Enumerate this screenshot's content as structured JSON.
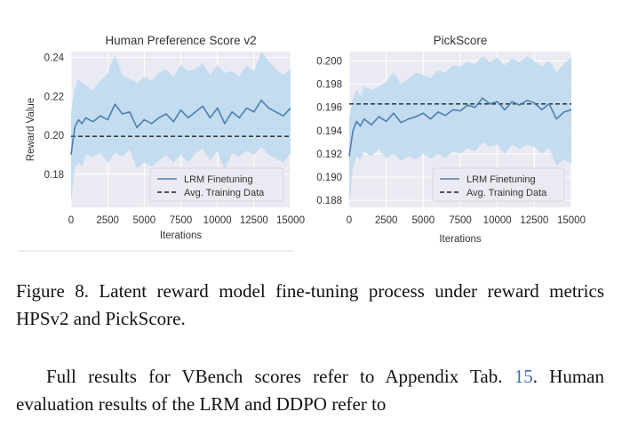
{
  "chart_data": [
    {
      "type": "line",
      "title": "Human Preference Score v2",
      "xlabel": "Iterations",
      "ylabel": "Reward Value",
      "xlim": [
        0,
        15000
      ],
      "ylim": [
        0.163,
        0.243
      ],
      "xticks": [
        0,
        2500,
        5000,
        7500,
        10000,
        12500,
        15000
      ],
      "yticks": [
        0.18,
        0.2,
        0.22,
        0.24
      ],
      "ytick_labels": [
        "0.18",
        "0.20",
        "0.22",
        "0.24"
      ],
      "grid": true,
      "legend_position": "bottom-right",
      "series": [
        {
          "name": "LRM Finetuning",
          "style": "solid",
          "color": "#4c7fb0",
          "x": [
            0,
            250,
            500,
            750,
            1000,
            1500,
            2000,
            2500,
            3000,
            3500,
            4000,
            4500,
            5000,
            5500,
            6000,
            6500,
            7000,
            7500,
            8000,
            8500,
            9000,
            9500,
            10000,
            10500,
            11000,
            11500,
            12000,
            12500,
            13000,
            13500,
            14000,
            14500,
            15000
          ],
          "y": [
            0.19,
            0.204,
            0.208,
            0.206,
            0.209,
            0.207,
            0.21,
            0.208,
            0.216,
            0.211,
            0.212,
            0.204,
            0.208,
            0.206,
            0.209,
            0.211,
            0.207,
            0.213,
            0.209,
            0.212,
            0.215,
            0.209,
            0.214,
            0.206,
            0.212,
            0.209,
            0.214,
            0.212,
            0.218,
            0.214,
            0.212,
            0.21,
            0.214
          ],
          "band_upper": [
            0.212,
            0.224,
            0.229,
            0.227,
            0.226,
            0.223,
            0.228,
            0.232,
            0.241,
            0.231,
            0.229,
            0.227,
            0.23,
            0.228,
            0.232,
            0.234,
            0.23,
            0.236,
            0.233,
            0.234,
            0.237,
            0.231,
            0.236,
            0.232,
            0.233,
            0.23,
            0.236,
            0.233,
            0.243,
            0.238,
            0.234,
            0.231,
            0.234
          ],
          "band_lower": [
            0.166,
            0.183,
            0.186,
            0.184,
            0.19,
            0.189,
            0.191,
            0.186,
            0.191,
            0.189,
            0.193,
            0.183,
            0.186,
            0.184,
            0.187,
            0.19,
            0.186,
            0.19,
            0.186,
            0.191,
            0.193,
            0.187,
            0.192,
            0.182,
            0.191,
            0.189,
            0.192,
            0.19,
            0.194,
            0.19,
            0.188,
            0.186,
            0.191
          ]
        },
        {
          "name": "Avg. Training Data",
          "style": "dashed",
          "color": "#222222",
          "x": [
            0,
            15000
          ],
          "y": [
            0.1995,
            0.1995
          ]
        }
      ]
    },
    {
      "type": "line",
      "title": "PickScore",
      "xlabel": "Iterations",
      "ylabel": "",
      "xlim": [
        0,
        15000
      ],
      "ylim": [
        0.1874,
        0.2008
      ],
      "xticks": [
        0,
        2500,
        5000,
        7500,
        10000,
        12500,
        15000
      ],
      "yticks": [
        0.188,
        0.19,
        0.192,
        0.194,
        0.196,
        0.198,
        0.2
      ],
      "ytick_labels": [
        "0.188",
        "0.190",
        "0.192",
        "0.194",
        "0.196",
        "0.198",
        "0.200"
      ],
      "grid": true,
      "legend_position": "bottom-right",
      "series": [
        {
          "name": "LRM Finetuning",
          "style": "solid",
          "color": "#4c7fb0",
          "x": [
            0,
            250,
            500,
            750,
            1000,
            1500,
            2000,
            2500,
            3000,
            3500,
            4000,
            4500,
            5000,
            5500,
            6000,
            6500,
            7000,
            7500,
            8000,
            8500,
            9000,
            9500,
            10000,
            10500,
            11000,
            11500,
            12000,
            12500,
            13000,
            13500,
            14000,
            14500,
            15000
          ],
          "y": [
            0.1918,
            0.194,
            0.1948,
            0.1944,
            0.195,
            0.1945,
            0.1952,
            0.1948,
            0.1955,
            0.1947,
            0.195,
            0.1952,
            0.1955,
            0.195,
            0.1956,
            0.1953,
            0.1958,
            0.1957,
            0.1962,
            0.196,
            0.1968,
            0.1963,
            0.1965,
            0.1958,
            0.1965,
            0.1962,
            0.1966,
            0.1964,
            0.1958,
            0.1963,
            0.195,
            0.1956,
            0.1958
          ],
          "band_upper": [
            0.195,
            0.1968,
            0.1975,
            0.197,
            0.1978,
            0.1975,
            0.1978,
            0.1982,
            0.199,
            0.198,
            0.1985,
            0.199,
            0.1988,
            0.1985,
            0.1992,
            0.199,
            0.1996,
            0.1995,
            0.1999,
            0.1997,
            0.2004,
            0.1999,
            0.2003,
            0.1996,
            0.2002,
            0.1999,
            0.2004,
            0.2,
            0.1995,
            0.2,
            0.199,
            0.1998,
            0.2003
          ],
          "band_lower": [
            0.1876,
            0.1908,
            0.1918,
            0.1915,
            0.1922,
            0.1918,
            0.1924,
            0.1916,
            0.192,
            0.1914,
            0.1918,
            0.1915,
            0.192,
            0.1916,
            0.192,
            0.1916,
            0.1922,
            0.192,
            0.1925,
            0.1922,
            0.193,
            0.1926,
            0.1928,
            0.192,
            0.1928,
            0.1924,
            0.1928,
            0.1926,
            0.192,
            0.1925,
            0.191,
            0.1915,
            0.1912
          ]
        },
        {
          "name": "Avg. Training Data",
          "style": "dashed",
          "color": "#222222",
          "x": [
            0,
            15000
          ],
          "y": [
            0.1963,
            0.1963
          ]
        }
      ]
    }
  ],
  "caption": "Figure 8.  Latent reward model fine-tuning process under reward metrics HPSv2 and PickScore.",
  "body": {
    "text_before_ref": "Full results for VBench scores refer to Appendix Tab. ",
    "ref": "15",
    "text_after_ref": ". Human evaluation results of the LRM and DDPO refer to"
  },
  "colors": {
    "plot_background": "#eaeaf2",
    "grid": "#ffffff",
    "band": "#bcd9ef",
    "line": "#4c7fb0",
    "reference_line": "#222222",
    "link": "#3b6fb6"
  }
}
